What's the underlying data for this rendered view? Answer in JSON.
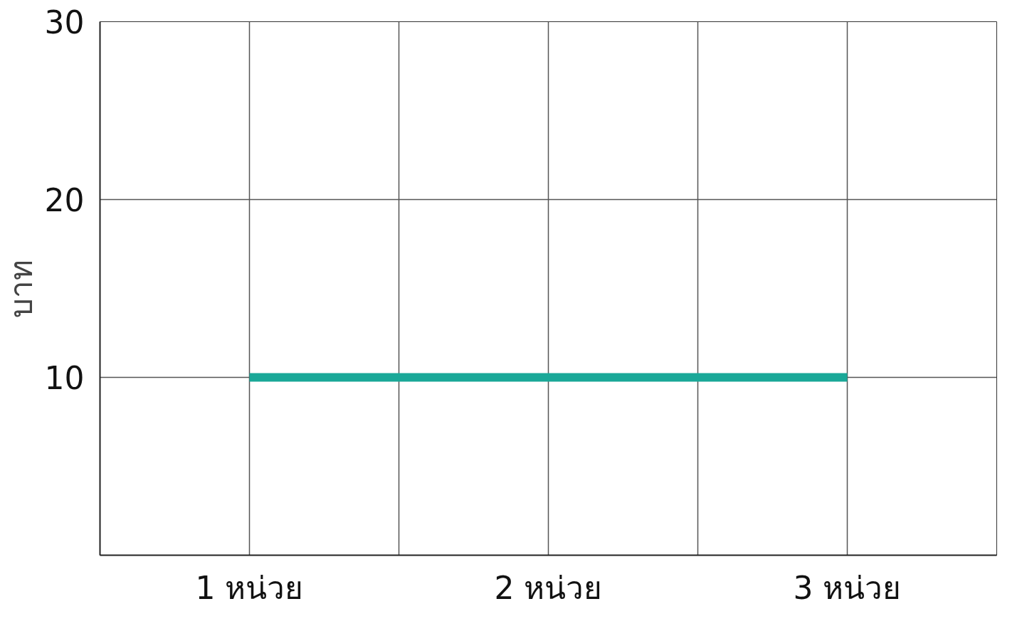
{
  "chart_data": {
    "type": "line",
    "ylabel": "บาท",
    "categories": [
      "1 หน่วย",
      "2 หน่วย",
      "3 หน่วย"
    ],
    "series": [
      {
        "color": "#1aa898",
        "values": [
          10,
          10,
          10
        ]
      }
    ],
    "ylim": [
      0,
      30
    ],
    "yticks": [
      10,
      20,
      30
    ],
    "grid": true,
    "marker": "none",
    "line_style": "solid"
  }
}
